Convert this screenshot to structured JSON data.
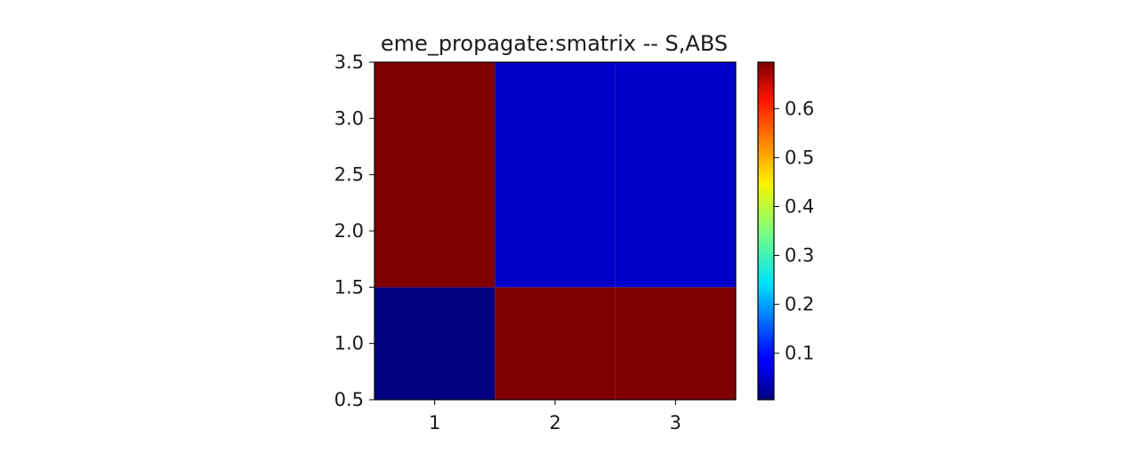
{
  "chart_data": {
    "type": "heatmap",
    "title": "eme_propagate:smatrix -- S,ABS",
    "xlabel": "",
    "ylabel": "",
    "x_ticks": [
      "1",
      "2",
      "3"
    ],
    "y_ticks": [
      "0.5",
      "1.0",
      "1.5",
      "2.0",
      "2.5",
      "3.0",
      "3.5"
    ],
    "x_range": [
      0.5,
      3.5
    ],
    "y_range": [
      0.5,
      3.5
    ],
    "rows_bottom_to_top": [
      1,
      3
    ],
    "columns": [
      1,
      2,
      3
    ],
    "cells": [
      {
        "row": 1,
        "col": 1,
        "value": 0.005,
        "y_from": 0.5,
        "y_to": 1.5,
        "x_from": 0.5,
        "x_to": 1.5
      },
      {
        "row": 1,
        "col": 2,
        "value": 0.695,
        "y_from": 0.5,
        "y_to": 1.5,
        "x_from": 1.5,
        "x_to": 2.5
      },
      {
        "row": 1,
        "col": 3,
        "value": 0.695,
        "y_from": 0.5,
        "y_to": 1.5,
        "x_from": 2.5,
        "x_to": 3.5
      },
      {
        "row": 3,
        "col": 1,
        "value": 0.695,
        "y_from": 1.5,
        "y_to": 3.5,
        "x_from": 0.5,
        "x_to": 1.5
      },
      {
        "row": 3,
        "col": 2,
        "value": 0.055,
        "y_from": 1.5,
        "y_to": 3.5,
        "x_from": 1.5,
        "x_to": 2.5
      },
      {
        "row": 3,
        "col": 3,
        "value": 0.056,
        "y_from": 1.5,
        "y_to": 3.5,
        "x_from": 2.5,
        "x_to": 3.5
      }
    ],
    "colormap": "jet",
    "colorbar": {
      "range": [
        0.005,
        0.695
      ],
      "ticks": [
        "0.1",
        "0.2",
        "0.3",
        "0.4",
        "0.5",
        "0.6"
      ],
      "tick_values": [
        0.1,
        0.2,
        0.3,
        0.4,
        0.5,
        0.6
      ]
    },
    "grid": false,
    "legend": "none"
  }
}
